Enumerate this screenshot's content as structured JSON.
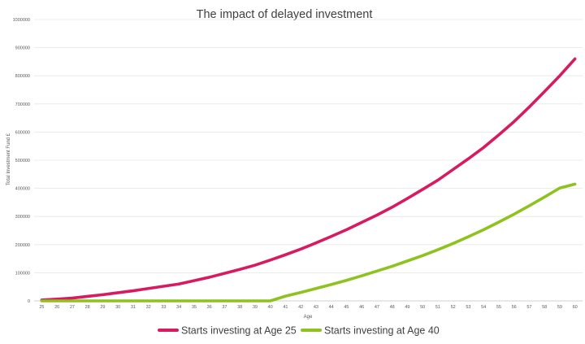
{
  "chart_data": {
    "type": "line",
    "title": "The impact of delayed investment",
    "xlabel": "Age",
    "ylabel": "Total Investment Fund £",
    "ylim": [
      0,
      1000000
    ],
    "y_ticks": [
      0,
      100000,
      200000,
      300000,
      400000,
      500000,
      600000,
      700000,
      800000,
      900000,
      1000000
    ],
    "grid": true,
    "legend_position": "bottom",
    "categories": [
      "25",
      "26",
      "27",
      "28",
      "29",
      "30",
      "31",
      "32",
      "33",
      "34",
      "35",
      "36",
      "37",
      "38",
      "39",
      "40",
      "41",
      "42",
      "43",
      "44",
      "45",
      "46",
      "47",
      "48",
      "49",
      "50",
      "51",
      "52",
      "53",
      "54",
      "55",
      "56",
      "57",
      "58",
      "59",
      "60"
    ],
    "series": [
      {
        "name": "Starts investing at Age 25",
        "color": "#d81b60",
        "values": [
          3000,
          6200,
          10000,
          16000,
          22000,
          29000,
          36000,
          44000,
          52000,
          60000,
          72000,
          84000,
          98000,
          112000,
          127000,
          145000,
          164000,
          184000,
          206000,
          229000,
          253000,
          279000,
          305000,
          333000,
          364000,
          396000,
          429000,
          467000,
          505000,
          545000,
          590000,
          637000,
          689000,
          744000,
          800000,
          860000
        ]
      },
      {
        "name": "Starts investing at Age 40",
        "color": "#8dc21f",
        "values": [
          0,
          0,
          0,
          0,
          0,
          0,
          0,
          0,
          0,
          0,
          0,
          0,
          0,
          0,
          0,
          0,
          17000,
          30000,
          44000,
          58000,
          73000,
          89000,
          106000,
          123000,
          142000,
          161000,
          182000,
          204000,
          228000,
          253000,
          280000,
          308000,
          338000,
          369000,
          401000,
          415000
        ]
      }
    ]
  }
}
